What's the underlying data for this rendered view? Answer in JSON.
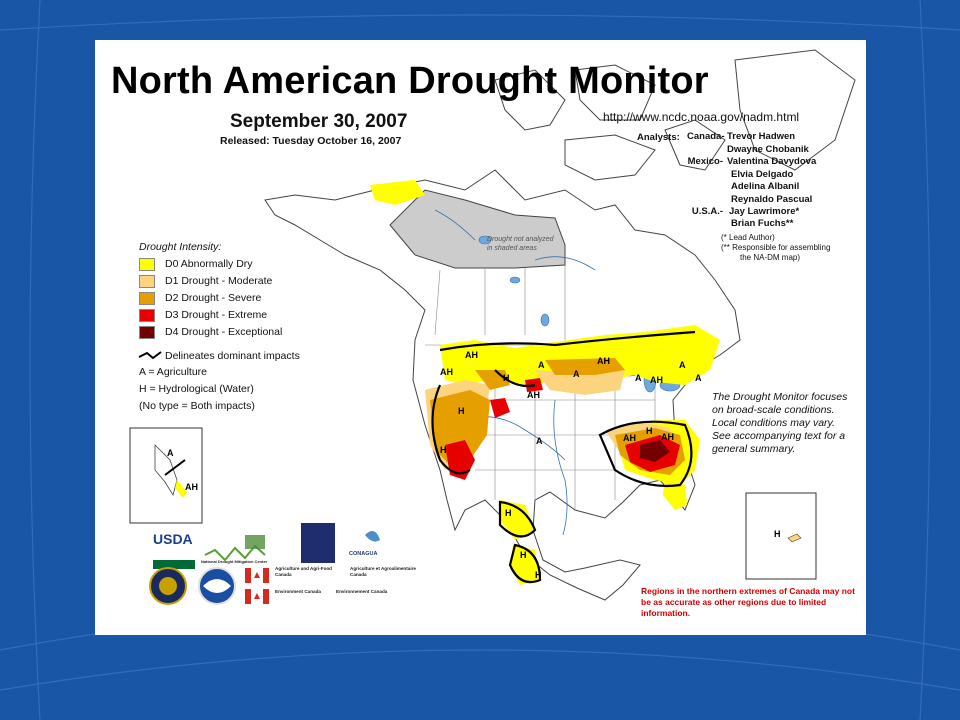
{
  "slide": {
    "bg_color": "#1a56a6",
    "grid_color": "#3f76c0"
  },
  "title": "North American Drought Monitor",
  "date": "September 30, 2007",
  "released": "Released:  Tuesday October 16, 2007",
  "url": "http://www.ncdc.noaa.gov/nadm.html",
  "analysts": {
    "label": "Analysts:",
    "rows": [
      {
        "country": "Canada-",
        "name": "Trevor Hadwen"
      },
      {
        "country": "",
        "name": "Dwayne Chobanik"
      },
      {
        "country": "Mexico-",
        "name": "Valentina Davydova"
      },
      {
        "country": "",
        "name": "Elvia Delgado"
      },
      {
        "country": "",
        "name": "Adelina Albanil"
      },
      {
        "country": "",
        "name": "Reynaldo Pascual"
      },
      {
        "country": "U.S.A.-",
        "name": "Jay Lawrimore*"
      },
      {
        "country": "",
        "name": "Brian Fuchs**"
      }
    ],
    "footnotes": [
      "(*  Lead Author)",
      "(**  Responsible for assembling",
      "the NA-DM map)"
    ]
  },
  "not_analyzed_label": [
    "Drought not analyzed",
    "in shaded areas"
  ],
  "legend": {
    "title": "Drought Intensity:",
    "items": [
      {
        "label": "D0 Abnormally Dry",
        "color": "#ffff00"
      },
      {
        "label": "D1 Drought - Moderate",
        "color": "#fcd37f"
      },
      {
        "label": "D2 Drought - Severe",
        "color": "#e5a000"
      },
      {
        "label": "D3 Drought - Extreme",
        "color": "#e60000"
      },
      {
        "label": "D4 Drought - Exceptional",
        "color": "#730000"
      }
    ],
    "impacts": [
      "Delineates dominant impacts",
      "A = Agriculture",
      "H = Hydrological (Water)",
      "(No type = Both impacts)"
    ]
  },
  "map_labels": [
    "AH",
    "AH",
    "H",
    "A",
    "A",
    "AH",
    "A",
    "A",
    "A",
    "AH",
    "H",
    "H",
    "AH",
    "H",
    "A",
    "AH",
    "AH",
    "H",
    "H",
    "H"
  ],
  "inset_labels": {
    "alaska_a": "A",
    "alaska_ah": "AH",
    "hawaii_h": "H"
  },
  "note": "The Drought Monitor focuses on broad-scale conditions.  Local conditions may vary.  See accompanying text for a general summary.",
  "warning": "Regions in the northern extremes of Canada may not be as accurate as other regions due to limited information.",
  "logos": {
    "usda": "USDA",
    "ndmc": "National Drought Mitigation Center",
    "conagua": "CONAGUA",
    "agri1": "Agriculture and Agri-Food Canada",
    "agri2": "Agriculture et Agroalimentaire Canada",
    "env1": "Environment Canada",
    "env2": "Environnement Canada"
  }
}
